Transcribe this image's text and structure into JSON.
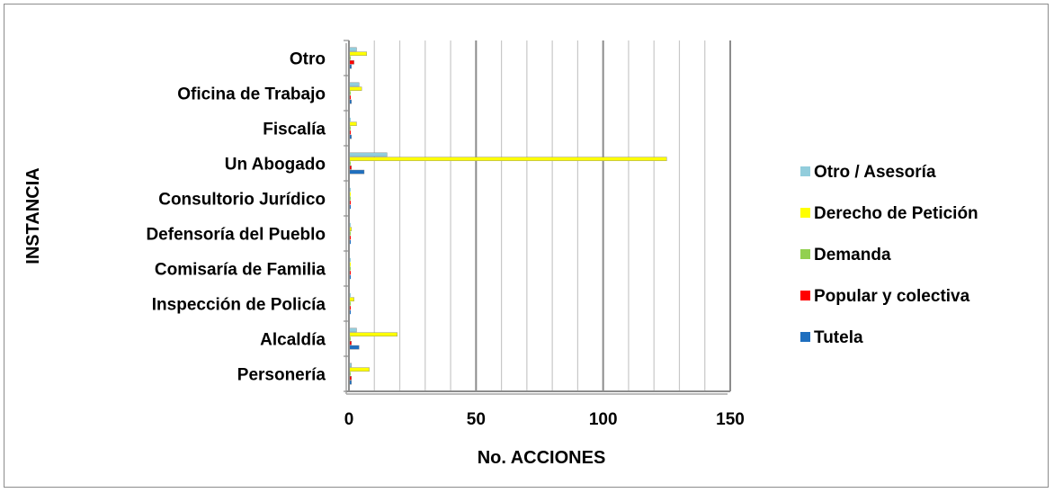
{
  "chart_data": {
    "type": "bar",
    "orientation": "horizontal",
    "categories": [
      "Personería",
      "Alcaldía",
      "Inspección de Policía",
      "Comisaría de Familia",
      "Defensoría del Pueblo",
      "Consultorio Jurídico",
      "Un Abogado",
      "Fiscalía",
      "Oficina de Trabajo",
      "Otro"
    ],
    "series": [
      {
        "name": "Tutela",
        "color": "#1f6fbf",
        "values": [
          1,
          4,
          0,
          0,
          0,
          0,
          6,
          1,
          1,
          1
        ]
      },
      {
        "name": "Popular y colectiva",
        "color": "#ff0000",
        "values": [
          1,
          1,
          0,
          0,
          0,
          0,
          1,
          0,
          0,
          2
        ]
      },
      {
        "name": "Demanda",
        "color": "#92d050",
        "values": [
          0,
          0,
          0,
          0,
          0,
          0,
          0,
          0,
          0,
          0
        ]
      },
      {
        "name": "Derecho de Petición",
        "color": "#ffff00",
        "values": [
          8,
          19,
          2,
          0,
          1,
          0,
          125,
          3,
          5,
          7
        ]
      },
      {
        "name": "Otro / Asesoría",
        "color": "#92cddc",
        "values": [
          1,
          3,
          0,
          0,
          0,
          0,
          15,
          0,
          4,
          3
        ]
      }
    ],
    "xlabel": "No. ACCIONES",
    "ylabel": "INSTANCIA",
    "xlim": [
      0,
      150
    ],
    "x_ticks": [
      "0",
      "50",
      "100",
      "150"
    ],
    "grid": "vertical",
    "legend_position": "right",
    "legend_order": [
      "Otro / Asesoría",
      "Derecho de Petición",
      "Demanda",
      "Popular y colectiva",
      "Tutela"
    ]
  }
}
